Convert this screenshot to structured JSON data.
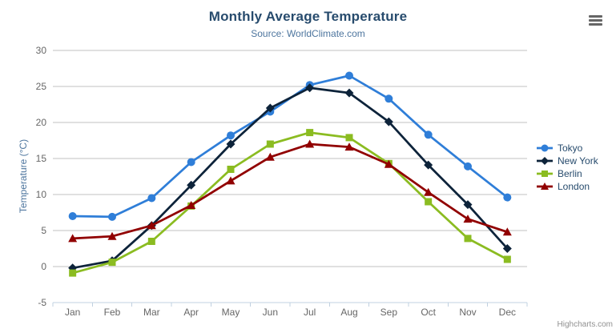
{
  "header": {
    "title": "Monthly Average Temperature",
    "subtitle": "Source: WorldClimate.com"
  },
  "credit": {
    "label": "Highcharts.com"
  },
  "menu": {
    "icon": "hamburger-icon"
  },
  "chart_data": {
    "type": "line",
    "title": "Monthly Average Temperature",
    "subtitle": "Source: WorldClimate.com",
    "categories": [
      "Jan",
      "Feb",
      "Mar",
      "Apr",
      "May",
      "Jun",
      "Jul",
      "Aug",
      "Sep",
      "Oct",
      "Nov",
      "Dec"
    ],
    "xlabel": "",
    "ylabel": "Temperature (°C)",
    "ylim": [
      -5,
      30
    ],
    "yticks": [
      -5,
      0,
      5,
      10,
      15,
      20,
      25,
      30
    ],
    "grid": true,
    "legend_position": "right",
    "colors": {
      "title": "#274b6d",
      "subtitle": "#4d759e",
      "axis_title": "#4d759e",
      "tick_label": "#666666",
      "gridline": "#c0c0c0",
      "axis_line": "#c0d0e0",
      "legend_text": "#274b6d",
      "credit": "#909090"
    },
    "series": [
      {
        "name": "Tokyo",
        "color": "#2f7ed8",
        "marker": "circle",
        "values": [
          7.0,
          6.9,
          9.5,
          14.5,
          18.2,
          21.5,
          25.2,
          26.5,
          23.3,
          18.3,
          13.9,
          9.6
        ]
      },
      {
        "name": "New York",
        "color": "#0d233a",
        "marker": "diamond",
        "values": [
          -0.2,
          0.8,
          5.7,
          11.3,
          17.0,
          22.0,
          24.8,
          24.1,
          20.1,
          14.1,
          8.6,
          2.5
        ]
      },
      {
        "name": "Berlin",
        "color": "#8bbc21",
        "marker": "square",
        "values": [
          -0.9,
          0.6,
          3.5,
          8.4,
          13.5,
          17.0,
          18.6,
          17.9,
          14.3,
          9.0,
          3.9,
          1.0
        ]
      },
      {
        "name": "London",
        "color": "#910000",
        "marker": "triangle",
        "values": [
          3.9,
          4.2,
          5.7,
          8.5,
          11.9,
          15.2,
          17.0,
          16.6,
          14.2,
          10.3,
          6.6,
          4.8
        ]
      }
    ]
  }
}
